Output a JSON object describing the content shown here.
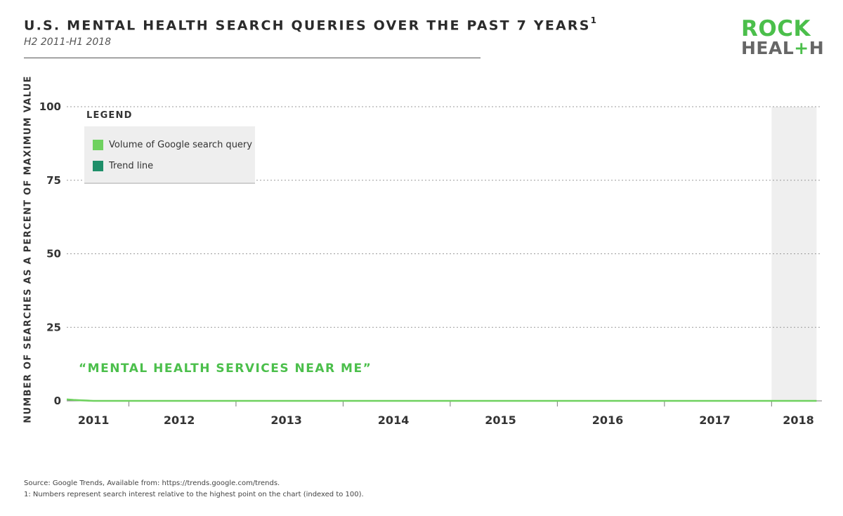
{
  "header": {
    "title": "U.S. MENTAL HEALTH SEARCH QUERIES OVER THE PAST 7 YEARS",
    "title_superscript": "1",
    "subtitle": "H2 2011-H1 2018"
  },
  "logo": {
    "line1": "ROCK",
    "line2_a": "HEAL",
    "line2_plus": "+",
    "line2_b": "H"
  },
  "legend": {
    "title": "LEGEND",
    "items": [
      {
        "label": "Volume of Google search query",
        "color": "#6fd15f"
      },
      {
        "label": "Trend line",
        "color": "#1f8f6a"
      }
    ]
  },
  "annotation": "“MENTAL HEALTH SERVICES NEAR ME”",
  "footnotes": {
    "source": "Source: Google Trends, Available from: https://trends.google.com/trends.",
    "note": "1: Numbers represent search interest relative to the highest point on the chart (indexed to 100)."
  },
  "chart_data": {
    "type": "line",
    "ylabel": "NUMBER OF SEARCHES AS A PERCENT OF MAXIMUM VALUE",
    "xlabel": "",
    "ylim": [
      0,
      100
    ],
    "yticks": [
      0,
      25,
      50,
      75,
      100
    ],
    "xlim": [
      0,
      7.05
    ],
    "year_labels": [
      "2011",
      "2012",
      "2013",
      "2014",
      "2015",
      "2016",
      "2017",
      "2018"
    ],
    "year_label_positions": [
      0.25,
      1.05,
      2.05,
      3.05,
      4.05,
      5.05,
      6.05,
      6.83
    ],
    "year_boundaries": [
      0.58,
      1.58,
      2.58,
      3.58,
      4.58,
      5.58,
      6.58
    ],
    "shaded_region": [
      6.58,
      7.0
    ],
    "grid": true,
    "series": [
      {
        "name": "Volume of Google search query",
        "color": "#6fd15f",
        "x": [
          0,
          0.0625,
          0.125,
          0.1875,
          0.25,
          0.3125,
          0.375,
          0.4375,
          0.5,
          0.5625,
          0.625,
          0.6875,
          0.75,
          0.8125,
          0.875,
          0.9375,
          1.0,
          1.0625,
          1.125,
          1.1875,
          1.25,
          1.3125,
          1.375,
          1.4375,
          1.5,
          1.5625,
          1.625,
          1.6875,
          1.75,
          1.8125,
          1.875,
          1.9375,
          2.0,
          2.0625,
          2.125,
          2.1875,
          2.25,
          2.3125,
          2.375,
          2.4375,
          2.5,
          2.5625,
          2.625,
          2.6875,
          2.75,
          2.8125,
          2.875,
          2.9375,
          3.0,
          3.0625,
          3.125,
          3.1875,
          3.25,
          3.3125,
          3.375,
          3.4375,
          3.5,
          3.5625,
          3.625,
          3.6875,
          3.75,
          3.8125,
          3.875,
          3.9375,
          4.0,
          4.0625,
          4.125,
          4.1875,
          4.25,
          4.3125,
          4.375,
          4.4375,
          4.5,
          4.5625,
          4.625,
          4.6875,
          4.75,
          4.8125,
          4.875,
          4.9375,
          5.0,
          5.0625,
          5.125,
          5.1875,
          5.25,
          5.3125,
          5.375,
          5.4375,
          5.5,
          5.5625,
          5.625,
          5.6875,
          5.75,
          5.8125,
          5.875,
          5.9375,
          6.0,
          6.0625,
          6.125,
          6.1875,
          6.25,
          6.3125,
          6.375,
          6.4375,
          6.5,
          6.5625,
          6.625,
          6.6875,
          6.75,
          6.8125,
          6.875,
          6.9375,
          7.0
        ],
        "values": [
          0.5,
          0.3,
          0.2,
          0.1,
          0,
          0,
          0,
          0,
          0,
          0,
          0,
          0,
          0,
          0,
          0,
          0,
          0,
          0,
          0,
          0,
          0,
          0,
          0,
          0,
          0,
          0,
          0,
          0,
          0,
          0,
          0,
          0,
          0,
          0,
          0,
          0,
          0,
          0,
          0,
          0,
          0,
          0,
          0,
          0,
          0,
          0,
          0,
          0,
          0,
          0,
          0,
          0,
          0,
          0,
          0,
          0,
          0,
          0,
          0,
          0,
          0,
          0,
          0,
          0,
          0,
          0,
          0,
          0,
          0,
          0,
          0,
          0,
          0,
          0,
          0,
          0,
          0,
          0,
          0,
          0,
          0,
          0,
          0,
          0,
          0,
          0,
          0,
          0,
          0,
          0,
          0,
          0,
          0,
          0,
          0,
          0,
          0,
          0,
          0,
          0,
          0,
          0,
          0,
          0,
          0,
          0,
          0,
          0,
          0,
          0,
          0,
          0,
          0
        ]
      },
      {
        "name": "Trend line",
        "color": "#1f8f6a",
        "x": [],
        "values": []
      }
    ]
  }
}
